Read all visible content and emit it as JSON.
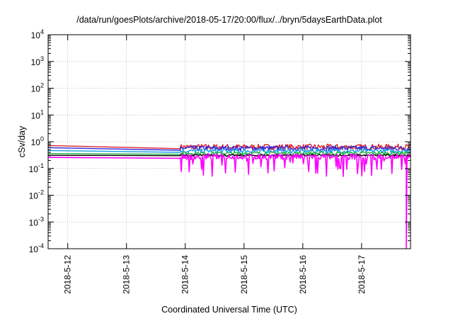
{
  "chart_data": {
    "type": "line",
    "title": "/data/run/goesPlots/archive/2018-05-17/20:00/flux/../bryn/5daysEarthData.plot",
    "xlabel": "Coordinated Universal Time (UTC)",
    "ylabel": "cSv/day",
    "yscale": "log",
    "ylim": [
      0.0001,
      10000
    ],
    "xlim": [
      "2018-05-11 16:00",
      "2018-05-17 20:00"
    ],
    "grid": true,
    "xticks": [
      "2018-5-12",
      "2018-5-13",
      "2018-5-14",
      "2018-5-15",
      "2018-5-16",
      "2018-5-17"
    ],
    "yticks": [
      {
        "value": 0.0001,
        "base": "10",
        "exp": "-4"
      },
      {
        "value": 0.001,
        "base": "10",
        "exp": "-3"
      },
      {
        "value": 0.01,
        "base": "10",
        "exp": "-2"
      },
      {
        "value": 0.1,
        "base": "10",
        "exp": "-1"
      },
      {
        "value": 1,
        "base": "10",
        "exp": "0"
      },
      {
        "value": 10,
        "base": "10",
        "exp": "1"
      },
      {
        "value": 100,
        "base": "10",
        "exp": "2"
      },
      {
        "value": 1000,
        "base": "10",
        "exp": "3"
      },
      {
        "value": 10000,
        "base": "10",
        "exp": "4"
      }
    ],
    "gap": {
      "start": "2018-05-11 18:00",
      "end": "2018-05-13 22:00"
    },
    "series": [
      {
        "color": "#e0202a",
        "points": [
          [
            "2018-05-11 16:00",
            0.72
          ],
          [
            "2018-05-13 22:00",
            0.55
          ],
          [
            "2018-05-17 20:00",
            0.62
          ]
        ],
        "base": 0.58,
        "amp": 0.6
      },
      {
        "color": "#2a2adf",
        "points": [
          [
            "2018-05-11 16:00",
            0.6
          ],
          [
            "2018-05-13 22:00",
            0.48
          ],
          [
            "2018-05-17 20:00",
            0.52
          ]
        ],
        "base": 0.52,
        "amp": 0.55
      },
      {
        "color": "#18a0e0",
        "points": [
          [
            "2018-05-11 16:00",
            0.47
          ],
          [
            "2018-05-13 22:00",
            0.4
          ],
          [
            "2018-05-17 20:00",
            0.42
          ]
        ],
        "base": 0.42,
        "amp": 0.45
      },
      {
        "color": "#20b040",
        "points": [
          [
            "2018-05-11 16:00",
            0.36
          ],
          [
            "2018-05-13 22:00",
            0.34
          ],
          [
            "2018-05-17 20:00",
            0.35
          ]
        ],
        "base": 0.35,
        "amp": 0.35
      },
      {
        "color": "#000000",
        "points": [
          [
            "2018-05-11 16:00",
            0.31
          ],
          [
            "2018-05-13 22:00",
            0.3
          ],
          [
            "2018-05-17 20:00",
            0.3
          ]
        ],
        "base": 0.3,
        "amp": 0.2
      },
      {
        "color": "#ff00ff",
        "points": [
          [
            "2018-05-11 16:00",
            0.26
          ],
          [
            "2018-05-13 22:00",
            0.24
          ],
          [
            "2018-05-17 20:00",
            0.25
          ]
        ],
        "base": 0.25,
        "amp": 0.6,
        "dips": true,
        "final_drop": 0.0001
      }
    ]
  }
}
